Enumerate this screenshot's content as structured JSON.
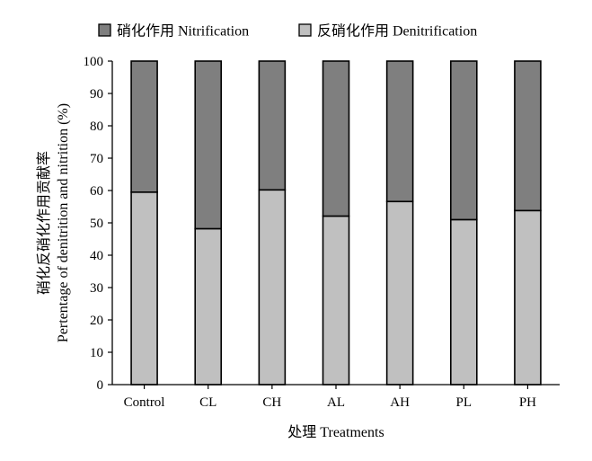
{
  "chart_data": {
    "type": "bar",
    "stacked": true,
    "percent_stacked": true,
    "categories": [
      "Control",
      "CL",
      "CH",
      "AL",
      "AH",
      "PL",
      "PH"
    ],
    "series": [
      {
        "name": "反硝化作用 Denitrification",
        "values": [
          59.5,
          48.2,
          60.2,
          52.1,
          56.6,
          51.0,
          53.8
        ],
        "color": "#c0c0c0"
      },
      {
        "name": "硝化作用 Nitrification",
        "values": [
          40.5,
          51.8,
          39.8,
          47.9,
          43.4,
          49.0,
          46.2
        ],
        "color": "#7f7f7f"
      }
    ],
    "xlabel": "处理 Treatments",
    "ylabel_line1": "硝化反硝化作用贡献率",
    "ylabel_line2": "Pertentage of denitrition and nitrition (%)",
    "ylim": [
      0,
      100
    ],
    "yticks": [
      0,
      10,
      20,
      30,
      40,
      50,
      60,
      70,
      80,
      90,
      100
    ],
    "grid": false,
    "legend_position": "top",
    "legend": [
      {
        "label": "硝化作用 Nitrification",
        "color": "#7f7f7f"
      },
      {
        "label": "反硝化作用 Denitrification",
        "color": "#c0c0c0"
      }
    ]
  }
}
